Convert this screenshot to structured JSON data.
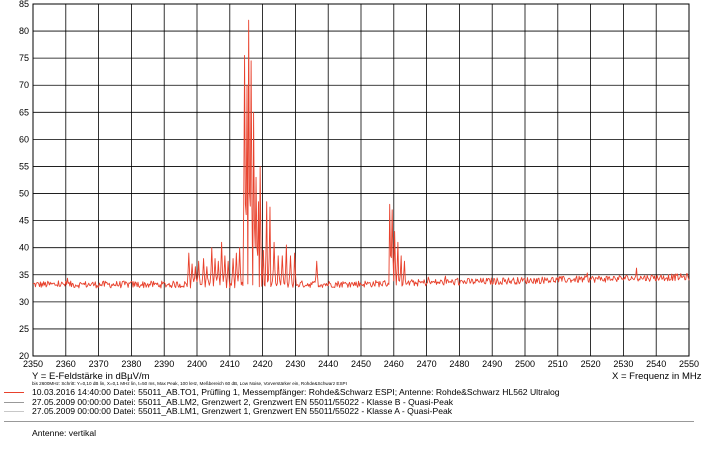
{
  "chart_data": {
    "type": "line",
    "xlim": [
      2350,
      2550
    ],
    "ylim": [
      20,
      85
    ],
    "x_ticks": [
      2350,
      2360,
      2370,
      2380,
      2390,
      2400,
      2410,
      2420,
      2430,
      2440,
      2450,
      2460,
      2470,
      2480,
      2490,
      2500,
      2510,
      2520,
      2530,
      2540,
      2550
    ],
    "y_ticks": [
      20,
      25,
      30,
      35,
      40,
      45,
      50,
      55,
      60,
      65,
      70,
      75,
      80,
      85
    ],
    "grid": true,
    "ylabel": "Y = E-Feldstärke in dBµV/m",
    "xlabel": "X = Frequenz in MHz",
    "settings_note": "bis 2600MHz: Schritt: Y=0,10 dB lin, X=0,1 MHz lin, t=50 ms, Max Peak, 100 kHz, Meßbereich 60 dB, Low Noise, Vorverstärker ein, Rohde&Schwarz ESPI",
    "series": [
      {
        "name": "10.03.2016 14:40:00 Datei: 55011_AB.TO1, Prüfling 1, Messempfänger: Rohde&Schwarz ESPI; Antenne: Rohde&Schwarz HL562 Ultralog",
        "color": "#e8412c",
        "baseline": [
          [
            2350,
            33.2
          ],
          [
            2400,
            33.2
          ],
          [
            2450,
            33.3
          ],
          [
            2490,
            33.8
          ],
          [
            2550,
            34.6
          ]
        ],
        "peaks": [
          [
            2397.5,
            39.0
          ],
          [
            2398.5,
            37.0
          ],
          [
            2399.5,
            36.5
          ],
          [
            2400.5,
            37.5
          ],
          [
            2402.0,
            38.0
          ],
          [
            2403.0,
            36.5
          ],
          [
            2404.5,
            40.0
          ],
          [
            2405.5,
            38.0
          ],
          [
            2406.5,
            37.5
          ],
          [
            2407.5,
            41.0
          ],
          [
            2408.5,
            38.5
          ],
          [
            2409.5,
            37.5
          ],
          [
            2411.0,
            38.0
          ],
          [
            2412.0,
            39.0
          ],
          [
            2413.0,
            40.0
          ],
          [
            2414.5,
            75.5
          ],
          [
            2415.2,
            70.0
          ],
          [
            2415.8,
            82.0
          ],
          [
            2416.5,
            74.5
          ],
          [
            2417.3,
            65.0
          ],
          [
            2418.0,
            53.0
          ],
          [
            2418.7,
            48.5
          ],
          [
            2419.3,
            55.0
          ],
          [
            2420.2,
            39.5
          ],
          [
            2421.2,
            48.5
          ],
          [
            2422.2,
            47.5
          ],
          [
            2423.5,
            41.0
          ],
          [
            2424.8,
            38.5
          ],
          [
            2426.0,
            38.5
          ],
          [
            2427.2,
            40.5
          ],
          [
            2428.5,
            38.5
          ],
          [
            2429.8,
            39.0
          ],
          [
            2436.5,
            37.5
          ],
          [
            2458.8,
            48.0
          ],
          [
            2459.5,
            47.0
          ],
          [
            2460.3,
            43.0
          ],
          [
            2461.2,
            41.0
          ],
          [
            2462.2,
            38.5
          ],
          [
            2463.2,
            37.5
          ]
        ]
      },
      {
        "name": "27.05.2009 00:00:00 Datei: 55011_AB.LM2, Grenzwert 2, Grenzwert EN 55011/55022 - Klasse B - Quasi-Peak",
        "color": "#999999"
      },
      {
        "name": "27.05.2009 00:00:00 Datei: 55011_AB.LM1, Grenzwert 1, Grenzwert EN 55011/55022 - Klasse A - Quasi-Peak",
        "color": "#c8c8c8"
      }
    ]
  },
  "footer": {
    "antenna": "Antenne: vertikal"
  }
}
